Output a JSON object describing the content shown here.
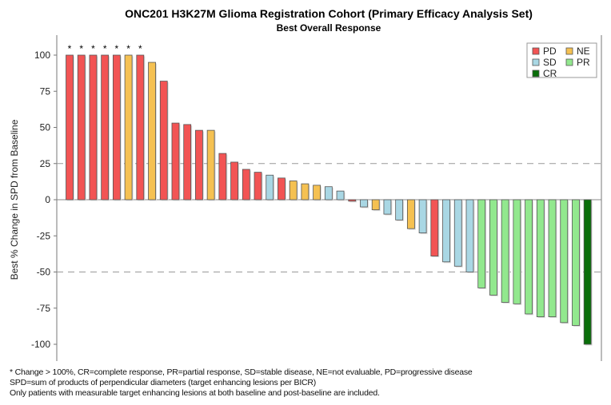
{
  "chart_data": {
    "type": "bar",
    "title": "ONC201 H3K27M Glioma Registration Cohort (Primary Efficacy Analysis Set)",
    "subtitle": "Best Overall Response",
    "xlabel": "",
    "ylabel": "Best % Change in SPD from Baseline",
    "ylim": [
      -110,
      110
    ],
    "yticks": [
      100,
      75,
      50,
      25,
      0,
      -25,
      -50,
      -75,
      -100
    ],
    "reference_lines": [
      25,
      -50
    ],
    "grid": false,
    "legend_placement": "top-right",
    "legend": [
      {
        "key": "PD",
        "color": "#f25454"
      },
      {
        "key": "NE",
        "color": "#f5c152"
      },
      {
        "key": "SD",
        "color": "#a9d7e4"
      },
      {
        "key": "PR",
        "color": "#92e88e"
      },
      {
        "key": "CR",
        "color": "#0a6e0a"
      }
    ],
    "star_marker": "*",
    "values": [
      100,
      100,
      100,
      100,
      100,
      100,
      100,
      95,
      82,
      53,
      52,
      48,
      48,
      32,
      26,
      21,
      19,
      17,
      15,
      13,
      11,
      10,
      9,
      6,
      -1,
      -5,
      -7,
      -10,
      -14,
      -20,
      -23,
      -39,
      -43,
      -46,
      -50,
      -61,
      -66,
      -71,
      -72,
      -79,
      -81,
      -81,
      -85,
      -87,
      -100
    ],
    "response": [
      "PD",
      "PD",
      "PD",
      "PD",
      "PD",
      "NE",
      "PD",
      "NE",
      "PD",
      "PD",
      "PD",
      "PD",
      "NE",
      "PD",
      "PD",
      "PD",
      "PD",
      "SD",
      "PD",
      "NE",
      "NE",
      "NE",
      "SD",
      "SD",
      "PD",
      "SD",
      "NE",
      "SD",
      "SD",
      "NE",
      "SD",
      "PD",
      "SD",
      "SD",
      "SD",
      "PR",
      "PR",
      "PR",
      "PR",
      "PR",
      "PR",
      "PR",
      "PR",
      "PR",
      "CR"
    ],
    "starred": [
      true,
      true,
      true,
      true,
      true,
      true,
      true,
      false,
      false,
      false,
      false,
      false,
      false,
      false,
      false,
      false,
      false,
      false,
      false,
      false,
      false,
      false,
      false,
      false,
      false,
      false,
      false,
      false,
      false,
      false,
      false,
      false,
      false,
      false,
      false,
      false,
      false,
      false,
      false,
      false,
      false,
      false,
      false,
      false,
      false
    ]
  },
  "footnotes": [
    "* Change > 100%, CR=complete response, PR=partial response, SD=stable disease, NE=not evaluable, PD=progressive disease",
    "SPD=sum of products of perpendicular diameters (target enhancing lesions per BICR)",
    "Only patients with measurable target enhancing lesions at both baseline and post-baseline are included."
  ]
}
